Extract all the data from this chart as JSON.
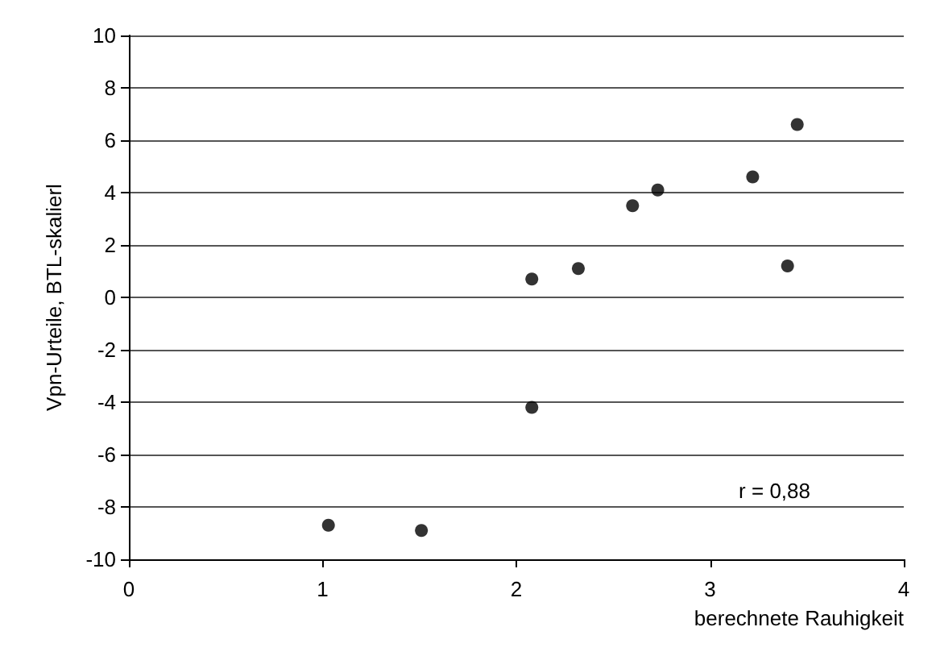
{
  "chart_data": {
    "type": "scatter",
    "xlabel": "berechnete Rauhigkeit",
    "ylabel": "Vpn-Urteile, BTL-skalierl",
    "annotations": [
      "r = 0,88"
    ],
    "series": [
      {
        "color": "#000000",
        "x": [
          1.03,
          1.51,
          2.08,
          2.08,
          2.32,
          2.6,
          2.73,
          3.22,
          3.4,
          3.45
        ],
        "values": [
          -8.7,
          -8.9,
          0.7,
          -4.2,
          1.1,
          3.5,
          4.1,
          4.6,
          1.2,
          6.6
        ]
      }
    ],
    "xlim": [
      0,
      4
    ],
    "xticks": [
      0,
      1,
      2,
      3,
      4
    ],
    "ylim": [
      -10,
      10
    ],
    "yticks": [
      -10,
      -8,
      -6,
      -4,
      -2,
      0,
      2,
      4,
      6,
      8,
      10
    ],
    "grid": "y",
    "marker": "circle"
  }
}
